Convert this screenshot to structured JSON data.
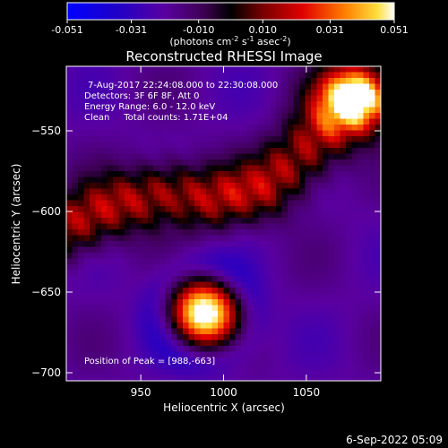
{
  "chart_data": {
    "type": "heatmap",
    "title": "Reconstructed RHESSI Image",
    "xlabel": "Heliocentric X (arcsec)",
    "ylabel": "Heliocentric Y (arcsec)",
    "xlim": [
      905,
      1095
    ],
    "ylim": [
      -705,
      -510
    ],
    "x_ticks": [
      950,
      1000,
      1050
    ],
    "y_ticks": [
      -550,
      -600,
      -650,
      -700
    ],
    "colorbar": {
      "min": -0.051,
      "max": 0.051,
      "ticks": [
        "-0.051",
        "-0.031",
        "-0.010",
        "0.010",
        "0.031",
        "0.051"
      ],
      "unit_label": "(photons cm",
      "unit_sup1": "-2",
      "unit_mid": " s",
      "unit_sup2": "-1",
      "unit_mid2": " asec",
      "unit_sup3": "-2",
      "unit_end": ")"
    },
    "annotations": [
      "7-Aug-2017 22:24:08.000 to 22:30:08.000",
      "Detectors: 3F 6F 8F, Att 0",
      "Energy Range: 6.0 - 12.0 keV",
      "Clean     Total counts: 1.71E+04"
    ],
    "peak_label": "Position of Peak = [988,-663]",
    "peak": [
      988,
      -663
    ],
    "sources": [
      {
        "x": 988,
        "y": -663,
        "sx": 14,
        "sy": 14,
        "amp": 0.058
      },
      {
        "x": 1078,
        "y": -528,
        "sx": 16,
        "sy": 14,
        "amp": 0.038
      }
    ],
    "ridge": [
      [
        905,
        -610
      ],
      [
        935,
        -596
      ],
      [
        965,
        -588
      ],
      [
        995,
        -592
      ],
      [
        1022,
        -586
      ],
      [
        1040,
        -572
      ],
      [
        1060,
        -552
      ],
      [
        1082,
        -534
      ]
    ],
    "ridge_amp": 0.022,
    "ridge_width": 14
  },
  "footer": {
    "date": "6-Sep-2022 05:09"
  },
  "colors": {
    "background": "#000000",
    "foreground": "#ffffff"
  }
}
